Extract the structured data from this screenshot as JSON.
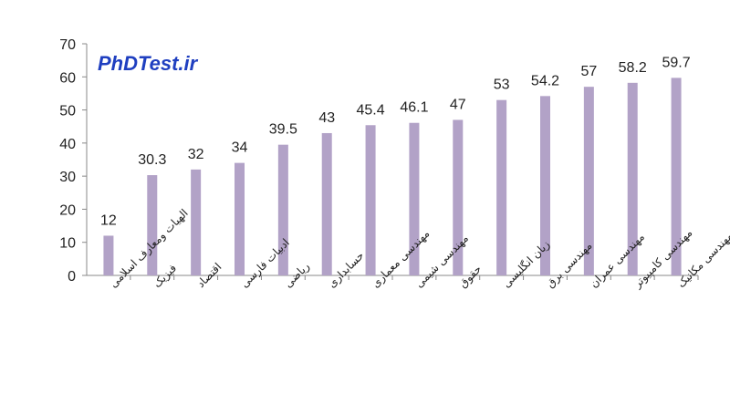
{
  "chart_data": {
    "type": "bar",
    "watermark": "PhDTest.ir",
    "categories": [
      "الهیات ومعارف اسلامی",
      "فیزیک",
      "اقتصاد",
      "ادبیات فارسی",
      "ریاضی",
      "حسابداری",
      "مهندسی معماری",
      "مهندسی شیمی",
      "حقوق",
      "زبان انگلیسی",
      "مهندسی برق",
      "مهندسی عمران",
      "مهندسی کامپیوتر",
      "مهندسی مکانیک"
    ],
    "values": [
      12,
      30.3,
      32,
      34,
      39.5,
      43,
      45.4,
      46.1,
      47,
      53,
      54.2,
      57,
      58.2,
      59.7
    ],
    "data_labels": [
      "12",
      "30.3",
      "32",
      "34",
      "39.5",
      "43",
      "45.4",
      "46.1",
      "47",
      "53",
      "54.2",
      "57",
      "58.2",
      "59.7"
    ],
    "y_ticks": [
      "0",
      "10",
      "20",
      "30",
      "40",
      "50",
      "60",
      "70"
    ],
    "ylim": [
      0,
      70
    ],
    "bar_color": "#b2a2c7",
    "axis_color": "#888888",
    "watermark_color": "#1f3fc0",
    "grid": false,
    "legend": "none"
  }
}
